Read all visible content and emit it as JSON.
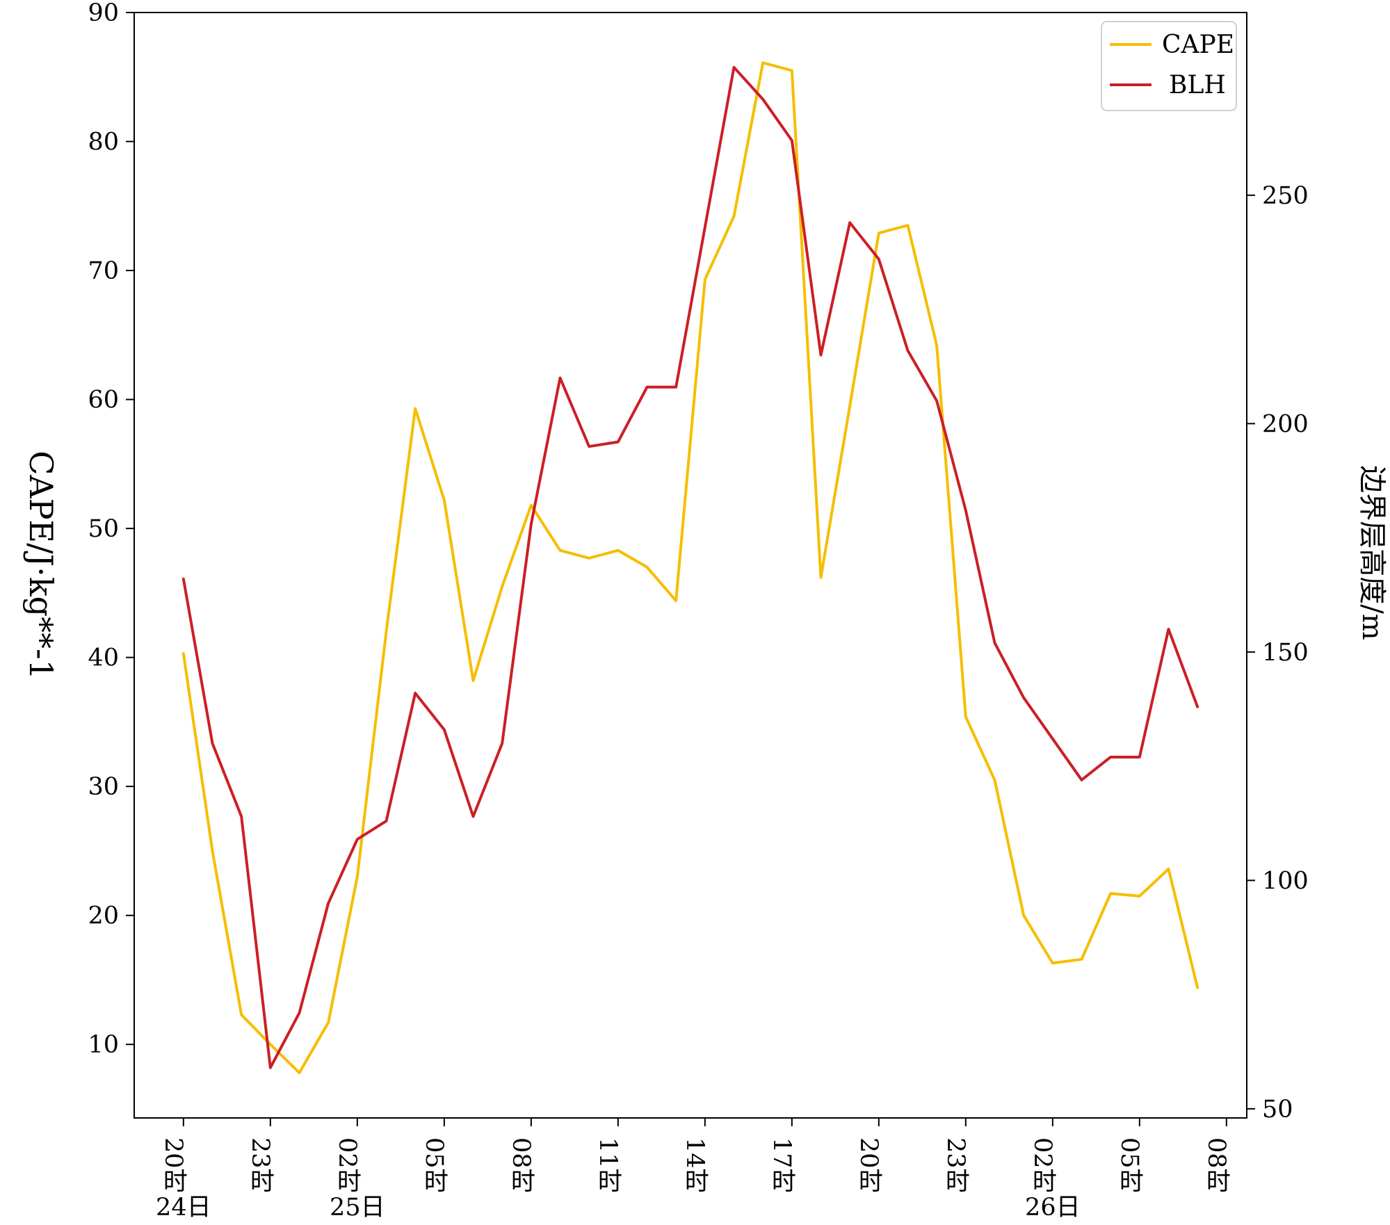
{
  "chart_data": {
    "type": "line",
    "x": [
      0,
      1,
      2,
      3,
      4,
      5,
      6,
      7,
      8,
      9,
      10,
      11,
      12,
      13,
      14,
      15,
      16,
      17,
      18,
      19,
      20,
      21,
      22,
      23,
      24,
      25,
      26,
      27,
      28,
      29,
      30,
      31,
      32,
      33,
      34,
      35
    ],
    "x_ticks": [
      {
        "pos": 0,
        "label": "20时"
      },
      {
        "pos": 3,
        "label": "23时"
      },
      {
        "pos": 6,
        "label": "02时"
      },
      {
        "pos": 9,
        "label": "05时"
      },
      {
        "pos": 12,
        "label": "08时"
      },
      {
        "pos": 15,
        "label": "11时"
      },
      {
        "pos": 18,
        "label": "14时"
      },
      {
        "pos": 21,
        "label": "17时"
      },
      {
        "pos": 24,
        "label": "20时"
      },
      {
        "pos": 27,
        "label": "23时"
      },
      {
        "pos": 30,
        "label": "02时"
      },
      {
        "pos": 33,
        "label": "05时"
      },
      {
        "pos": 36,
        "label": "08时"
      }
    ],
    "day_labels": [
      {
        "pos": 0,
        "label": "24日"
      },
      {
        "pos": 6,
        "label": "25日"
      },
      {
        "pos": 30,
        "label": "26日"
      }
    ],
    "xlim": [
      -1.7,
      36.7
    ],
    "ylabel": "CAPE/J·kg**-1",
    "ylabel_right": "边界层高度/m",
    "ylim": [
      4.3,
      90
    ],
    "ylim_right": [
      48,
      290
    ],
    "yticks": [
      10,
      20,
      30,
      40,
      50,
      60,
      70,
      80,
      90
    ],
    "yticks_right": [
      50,
      100,
      150,
      200,
      250
    ],
    "legend_position": "top-right",
    "series": [
      {
        "name": "CAPE",
        "axis": "left",
        "color": "#f5be00",
        "values": [
          40.3,
          25.0,
          12.3,
          10.0,
          7.8,
          11.7,
          23.0,
          42.0,
          59.3,
          52.2,
          38.2,
          45.5,
          51.8,
          48.3,
          47.7,
          48.3,
          47.0,
          44.4,
          69.3,
          74.2,
          86.1,
          85.5,
          46.2,
          59.5,
          72.9,
          73.5,
          64.2,
          35.4,
          30.5,
          20.0,
          16.3,
          16.6,
          21.7,
          21.5,
          23.6,
          14.4
        ]
      },
      {
        "name": "BLH",
        "axis": "right",
        "color": "#cc1f26",
        "values": [
          166,
          130,
          114,
          59,
          71,
          95,
          109,
          113,
          141,
          133,
          114,
          130,
          178,
          210,
          195,
          196,
          208,
          208,
          243,
          278,
          271,
          262,
          215,
          244,
          236,
          216,
          205,
          181,
          152,
          140,
          131,
          122,
          127,
          127,
          155,
          138
        ]
      }
    ]
  }
}
